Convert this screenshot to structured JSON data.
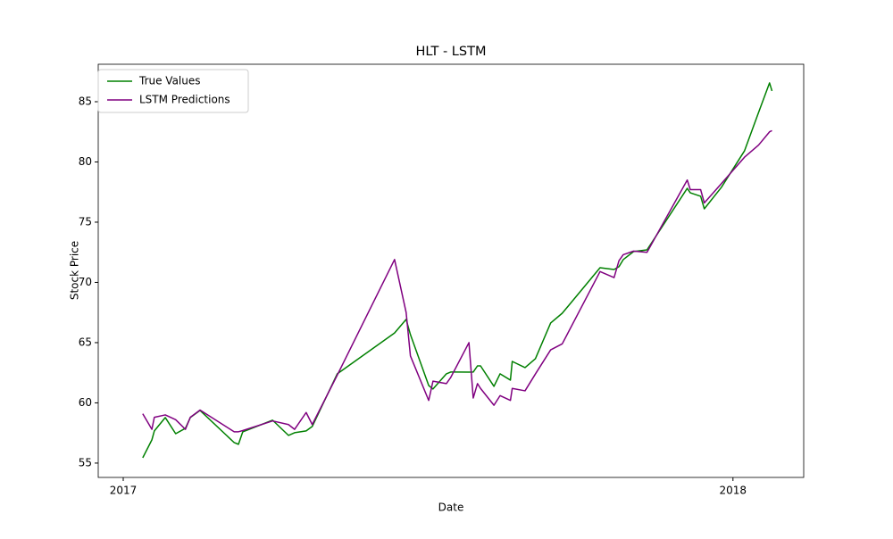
{
  "chart_data": {
    "type": "line",
    "title": "HLT - LSTM",
    "x_label": "Date",
    "y_label": "Stock Price",
    "x": [
      2017.032,
      2017.047,
      2017.051,
      2017.069,
      2017.086,
      2017.102,
      2017.11,
      2017.126,
      2017.182,
      2017.189,
      2017.196,
      2017.245,
      2017.271,
      2017.281,
      2017.3,
      2017.31,
      2017.351,
      2017.445,
      2017.464,
      2017.471,
      2017.501,
      2017.508,
      2017.53,
      2017.537,
      2017.567,
      2017.574,
      2017.581,
      2017.586,
      2017.608,
      2017.618,
      2017.635,
      2017.638,
      2017.659,
      2017.676,
      2017.701,
      2017.72,
      2017.782,
      2017.805,
      2017.813,
      2017.82,
      2017.837,
      2017.859,
      2017.925,
      2017.93,
      2017.947,
      2017.953,
      2017.981,
      2018.019,
      2018.042,
      2018.06,
      2018.064
    ],
    "series": [
      {
        "name": "True Values",
        "color": "green",
        "values": [
          55.44,
          56.93,
          57.67,
          58.78,
          57.44,
          57.89,
          58.78,
          59.37,
          56.7,
          56.56,
          57.59,
          58.56,
          57.3,
          57.52,
          57.67,
          58.04,
          62.41,
          65.8,
          66.93,
          65.67,
          61.44,
          61.15,
          62.41,
          62.56,
          62.55,
          62.56,
          63.07,
          63.07,
          61.37,
          62.41,
          61.89,
          63.44,
          62.93,
          63.67,
          66.63,
          67.44,
          71.22,
          71.07,
          71.3,
          71.89,
          72.56,
          72.7,
          77.81,
          77.44,
          77.15,
          76.11,
          77.89,
          80.93,
          84.11,
          86.56,
          85.89
        ]
      },
      {
        "name": "LSTM Predictions",
        "color": "purple",
        "values": [
          59.1,
          57.8,
          58.8,
          59.0,
          58.6,
          57.8,
          58.8,
          59.4,
          57.6,
          57.6,
          57.7,
          58.5,
          58.2,
          57.8,
          59.2,
          58.2,
          62.3,
          71.9,
          67.5,
          63.9,
          60.2,
          61.8,
          61.6,
          62.1,
          65.0,
          60.4,
          61.6,
          61.2,
          59.8,
          60.6,
          60.2,
          61.2,
          61.0,
          62.4,
          64.4,
          64.9,
          70.9,
          70.4,
          71.8,
          72.3,
          72.6,
          72.5,
          78.5,
          77.7,
          77.7,
          76.6,
          78.2,
          80.4,
          81.4,
          82.5,
          82.6
        ]
      }
    ],
    "xlim": [
      2016.959,
      2018.116
    ],
    "xticks": [
      2017,
      2018
    ],
    "ylim": [
      53.81,
      88.11
    ],
    "yticks": [
      55,
      60,
      65,
      70,
      75,
      80,
      85
    ],
    "grid": false,
    "legend": "upper left"
  }
}
